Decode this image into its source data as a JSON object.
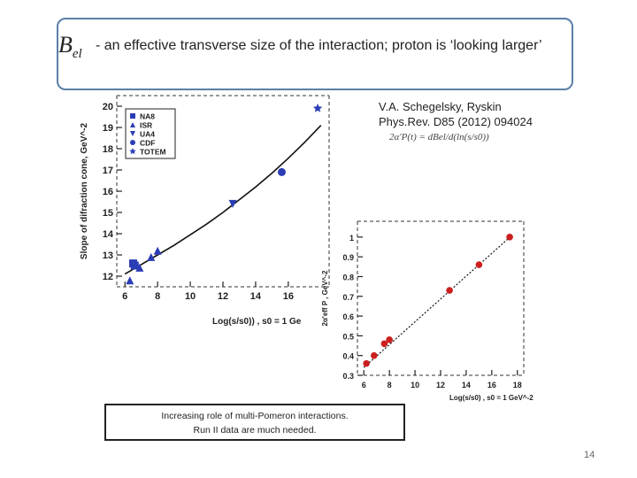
{
  "slide": {
    "symbol": "B",
    "symbol_sub": "el",
    "title": "- an effective transverse size  of the interaction; proton is ‘looking larger’",
    "caption_line1": "Increasing role of multi-Pomeron interactions.",
    "caption_line2": "Run II data are much  needed.",
    "page_number": "14",
    "ref_line1": "V.A. Schegelsky, Ryskin",
    "ref_line2": "Phys.Rev. D85 (2012) 094024",
    "formula": "2α'P(t) = dBel/d(ln(s/s0))",
    "accent_color": "#5b7fa8"
  },
  "chart_data": [
    {
      "type": "scatter",
      "ylabel": "Slope of difraction cone, GeV^-2",
      "xlabel": "Log(s/s0)) , s0 = 1 Ge",
      "xlim": [
        5.5,
        18.5
      ],
      "ylim": [
        11.5,
        20.5
      ],
      "xticks": [
        6,
        8,
        10,
        12,
        14,
        16
      ],
      "yticks": [
        12,
        13,
        14,
        15,
        16,
        17,
        18,
        19,
        20
      ],
      "legend_position": "top-left",
      "series": [
        {
          "name": "NA8",
          "marker": "square",
          "color": "#2a3db5",
          "x": [
            6.5,
            6.6
          ],
          "y": [
            12.6,
            12.5
          ]
        },
        {
          "name": "ISR",
          "marker": "triangle-up",
          "color": "#2a3db5",
          "x": [
            6.3,
            6.9,
            7.6,
            8.0
          ],
          "y": [
            11.8,
            12.4,
            12.9,
            13.2
          ]
        },
        {
          "name": "UA4",
          "marker": "triangle-down",
          "color": "#2a3db5",
          "x": [
            12.6
          ],
          "y": [
            15.4
          ]
        },
        {
          "name": "CDF",
          "marker": "circle",
          "color": "#2a3db5",
          "x": [
            15.6
          ],
          "y": [
            16.9
          ]
        },
        {
          "name": "TOTEM",
          "marker": "star",
          "color": "#2a3db5",
          "x": [
            17.8
          ],
          "y": [
            19.9
          ]
        }
      ],
      "fit_curve": {
        "x": [
          6,
          7,
          8,
          9,
          10,
          11,
          12,
          13,
          14,
          15,
          16,
          17,
          18
        ],
        "y": [
          12.1,
          12.55,
          13.0,
          13.45,
          13.95,
          14.45,
          15.0,
          15.6,
          16.2,
          16.85,
          17.55,
          18.3,
          19.1
        ]
      }
    },
    {
      "type": "scatter",
      "ylabel": "2α'eff P , GeV^-2",
      "xlabel": "Log(s/s0) , s0 = 1 GeV^-2",
      "xlim": [
        5.5,
        18.5
      ],
      "ylim": [
        0.3,
        1.08
      ],
      "xticks": [
        6,
        8,
        10,
        12,
        14,
        16,
        18
      ],
      "yticks": [
        0.3,
        0.4,
        0.5,
        0.6,
        0.7,
        0.8,
        0.9,
        1.0
      ],
      "ytick_labels": [
        "0.3",
        "0.4",
        "0.5",
        "0.6",
        "0.7",
        "0.8",
        "0.9",
        "1"
      ],
      "series": [
        {
          "name": "",
          "marker": "circle",
          "color": "#cc1f1f",
          "x": [
            6.2,
            6.8,
            7.6,
            8.0,
            12.7,
            15.0,
            17.4
          ],
          "y": [
            0.36,
            0.4,
            0.46,
            0.48,
            0.73,
            0.86,
            1.0
          ]
        }
      ],
      "fit_line": {
        "x": [
          6.0,
          17.6
        ],
        "y": [
          0.34,
          1.01
        ]
      }
    }
  ]
}
